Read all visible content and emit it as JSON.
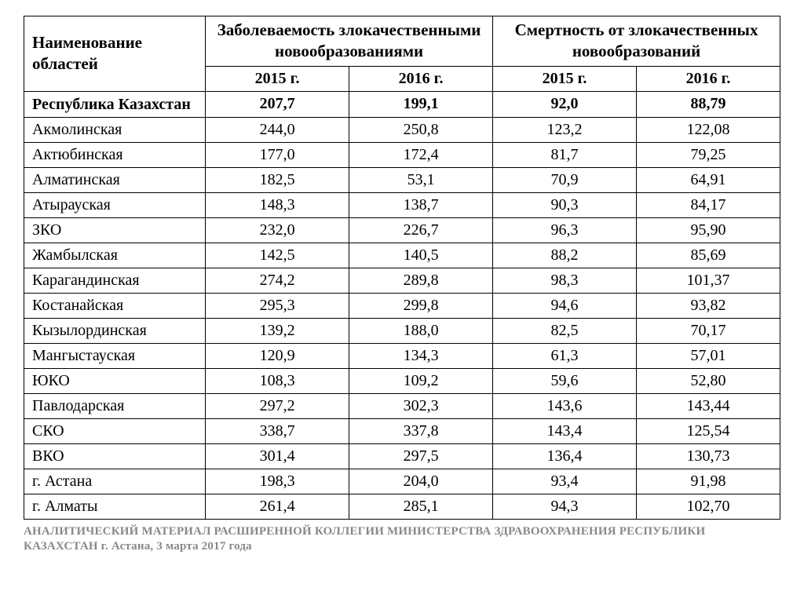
{
  "table": {
    "headers": {
      "region": "Наименование областей",
      "incidence": "Заболеваемость злокачественными новообразованиями",
      "mortality": "Смертность от злокачественных новообразований",
      "y2015": "2015 г.",
      "y2016": "2016 г."
    },
    "summary_row": {
      "name": "Республика Казахстан",
      "inc2015": "207,7",
      "inc2016": "199,1",
      "mor2015": "92,0",
      "mor2016": "88,79"
    },
    "rows": [
      {
        "name": "Акмолинская",
        "inc2015": "244,0",
        "inc2016": "250,8",
        "mor2015": "123,2",
        "mor2016": "122,08"
      },
      {
        "name": "Актюбинская",
        "inc2015": "177,0",
        "inc2016": "172,4",
        "mor2015": "81,7",
        "mor2016": "79,25"
      },
      {
        "name": "Алматинская",
        "inc2015": "182,5",
        "inc2016": "53,1",
        "mor2015": "70,9",
        "mor2016": "64,91"
      },
      {
        "name": "Атырауская",
        "inc2015": "148,3",
        "inc2016": "138,7",
        "mor2015": "90,3",
        "mor2016": "84,17"
      },
      {
        "name": "ЗКО",
        "inc2015": "232,0",
        "inc2016": "226,7",
        "mor2015": "96,3",
        "mor2016": "95,90"
      },
      {
        "name": "Жамбылская",
        "inc2015": "142,5",
        "inc2016": "140,5",
        "mor2015": "88,2",
        "mor2016": "85,69"
      },
      {
        "name": "Карагандинская",
        "inc2015": "274,2",
        "inc2016": "289,8",
        "mor2015": "98,3",
        "mor2016": "101,37"
      },
      {
        "name": "Костанайская",
        "inc2015": "295,3",
        "inc2016": "299,8",
        "mor2015": "94,6",
        "mor2016": "93,82"
      },
      {
        "name": "Кызылординская",
        "inc2015": "139,2",
        "inc2016": "188,0",
        "mor2015": "82,5",
        "mor2016": "70,17"
      },
      {
        "name": "Мангыстауская",
        "inc2015": "120,9",
        "inc2016": "134,3",
        "mor2015": "61,3",
        "mor2016": "57,01"
      },
      {
        "name": "ЮКО",
        "inc2015": "108,3",
        "inc2016": "109,2",
        "mor2015": "59,6",
        "mor2016": "52,80"
      },
      {
        "name": "Павлодарская",
        "inc2015": "297,2",
        "inc2016": "302,3",
        "mor2015": "143,6",
        "mor2016": "143,44"
      },
      {
        "name": "СКО",
        "inc2015": "338,7",
        "inc2016": "337,8",
        "mor2015": "143,4",
        "mor2016": "125,54"
      },
      {
        "name": "ВКО",
        "inc2015": "301,4",
        "inc2016": "297,5",
        "mor2015": "136,4",
        "mor2016": "130,73"
      },
      {
        "name": "г. Астана",
        "inc2015": "198,3",
        "inc2016": "204,0",
        "mor2015": "93,4",
        "mor2016": "91,98"
      },
      {
        "name": "г. Алматы",
        "inc2015": "261,4",
        "inc2016": "285,1",
        "mor2015": "94,3",
        "mor2016": "102,70"
      }
    ]
  },
  "footer": "АНАЛИТИЧЕСКИЙ МАТЕРИАЛ РАСШИРЕННОЙ КОЛЛЕГИИ МИНИСТЕРСТВА ЗДРАВООХРАНЕНИЯ РЕСПУБЛИКИ КАЗАХСТАН г. Астана, 3 марта 2017 года",
  "style": {
    "border_color": "#000000",
    "background_color": "#ffffff",
    "text_color": "#000000",
    "footer_color": "#888888",
    "font_family": "Times New Roman",
    "header_fontsize_pt": 16,
    "cell_fontsize_pt": 15,
    "footer_fontsize_pt": 11
  }
}
